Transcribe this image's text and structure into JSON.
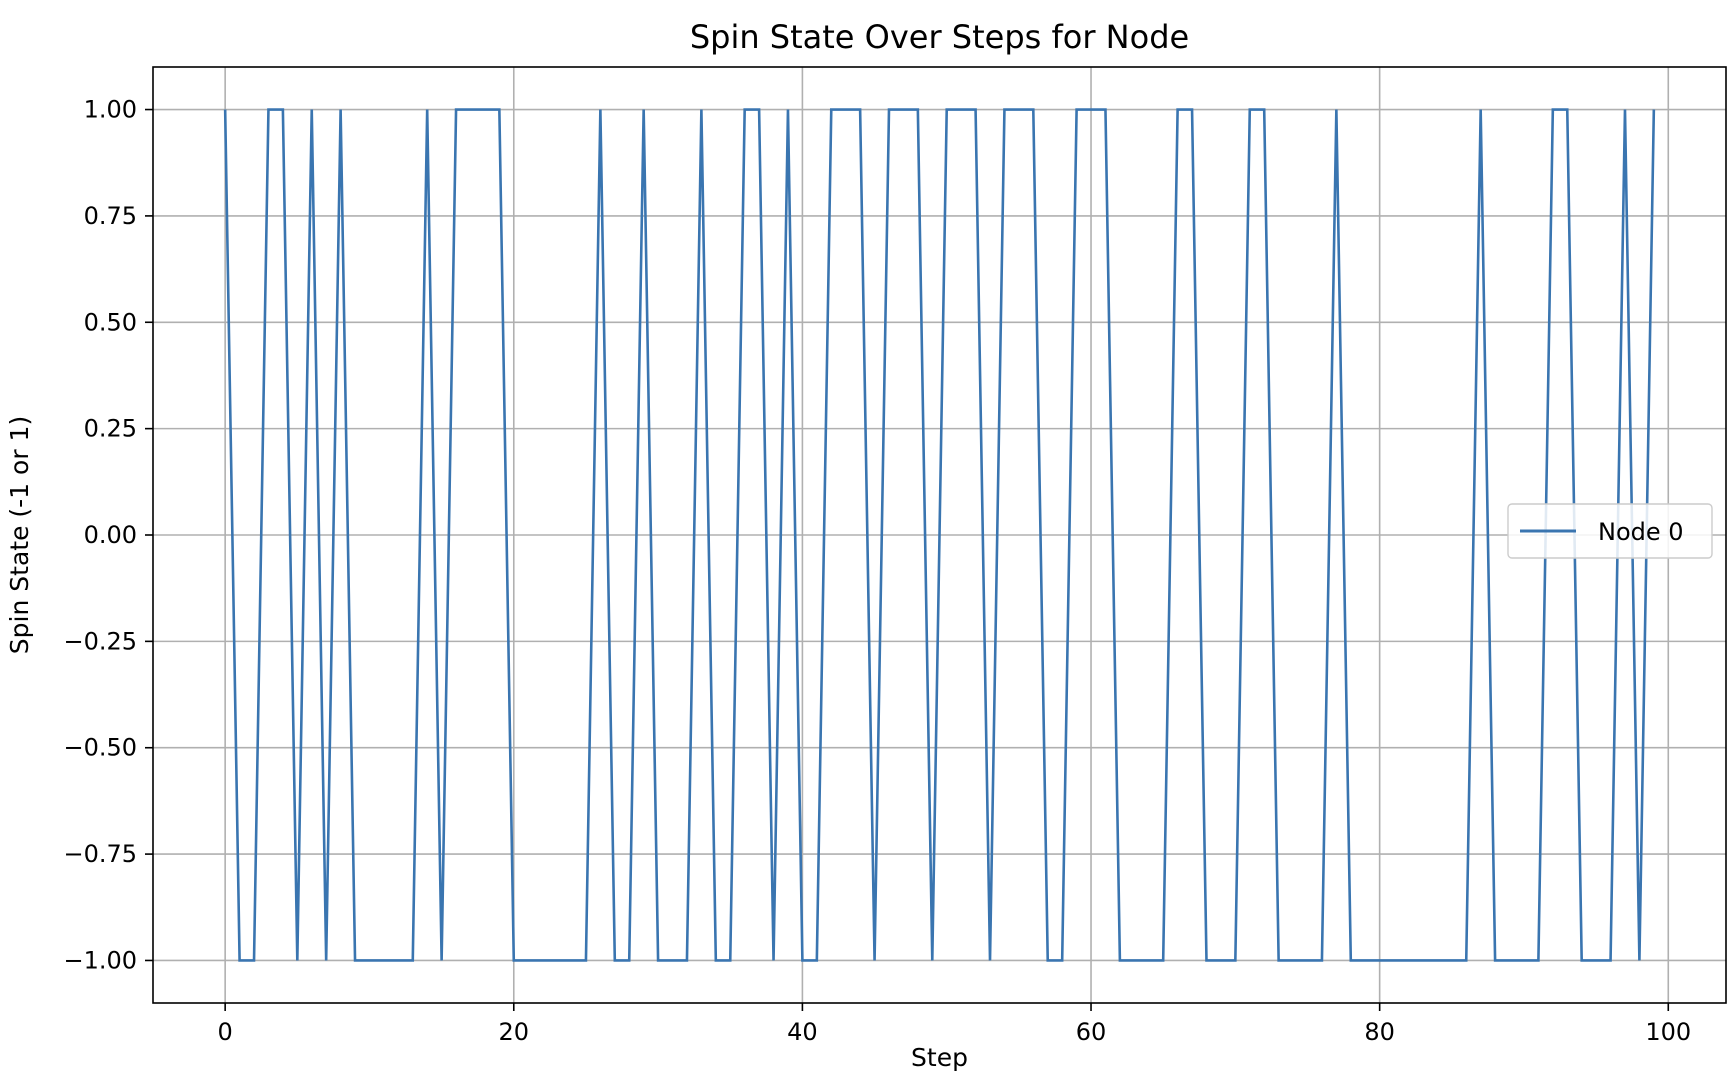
{
  "chart_data": {
    "type": "line",
    "title": "Spin State Over Steps for Node",
    "xlabel": "Step",
    "ylabel": "Spin State (-1 or 1)",
    "xlim": [
      -5,
      104
    ],
    "ylim": [
      -1.1,
      1.1
    ],
    "xticks": [
      0,
      20,
      40,
      60,
      80,
      100
    ],
    "xtick_labels": [
      "0",
      "20",
      "40",
      "60",
      "80",
      "100"
    ],
    "yticks": [
      1.0,
      0.75,
      0.5,
      0.25,
      0.0,
      -0.25,
      -0.5,
      -0.75,
      -1.0
    ],
    "ytick_labels": [
      "1.00",
      "0.75",
      "0.50",
      "0.25",
      "0.00",
      "−0.25",
      "−0.50",
      "−0.75",
      "−1.00"
    ],
    "grid": true,
    "legend_position": "center-right",
    "series": [
      {
        "name": "Node 0",
        "color": "#3a75b0",
        "x": [
          0,
          1,
          2,
          3,
          4,
          5,
          6,
          7,
          8,
          9,
          10,
          11,
          12,
          13,
          14,
          15,
          16,
          17,
          18,
          19,
          20,
          21,
          22,
          23,
          24,
          25,
          26,
          27,
          28,
          29,
          30,
          31,
          32,
          33,
          34,
          35,
          36,
          37,
          38,
          39,
          40,
          41,
          42,
          43,
          44,
          45,
          46,
          47,
          48,
          49,
          50,
          51,
          52,
          53,
          54,
          55,
          56,
          57,
          58,
          59,
          60,
          61,
          62,
          63,
          64,
          65,
          66,
          67,
          68,
          69,
          70,
          71,
          72,
          73,
          74,
          75,
          76,
          77,
          78,
          79,
          80,
          81,
          82,
          83,
          84,
          85,
          86,
          87,
          88,
          89,
          90,
          91,
          92,
          93,
          94,
          95,
          96,
          97,
          98,
          99
        ],
        "values": [
          1,
          -1,
          -1,
          1,
          1,
          -1,
          1,
          -1,
          1,
          -1,
          -1,
          -1,
          -1,
          -1,
          1,
          -1,
          1,
          1,
          1,
          1,
          -1,
          -1,
          -1,
          -1,
          -1,
          -1,
          1,
          -1,
          -1,
          1,
          -1,
          -1,
          -1,
          1,
          -1,
          -1,
          1,
          1,
          -1,
          1,
          -1,
          -1,
          1,
          1,
          1,
          -1,
          1,
          1,
          1,
          -1,
          1,
          1,
          1,
          -1,
          1,
          1,
          1,
          -1,
          -1,
          1,
          1,
          1,
          -1,
          -1,
          -1,
          -1,
          1,
          1,
          -1,
          -1,
          -1,
          1,
          1,
          -1,
          -1,
          -1,
          -1,
          1,
          -1,
          -1,
          -1,
          -1,
          -1,
          -1,
          -1,
          -1,
          -1,
          1,
          -1,
          -1,
          -1,
          -1,
          1,
          1,
          -1,
          -1,
          -1,
          1,
          -1,
          1
        ]
      }
    ]
  }
}
